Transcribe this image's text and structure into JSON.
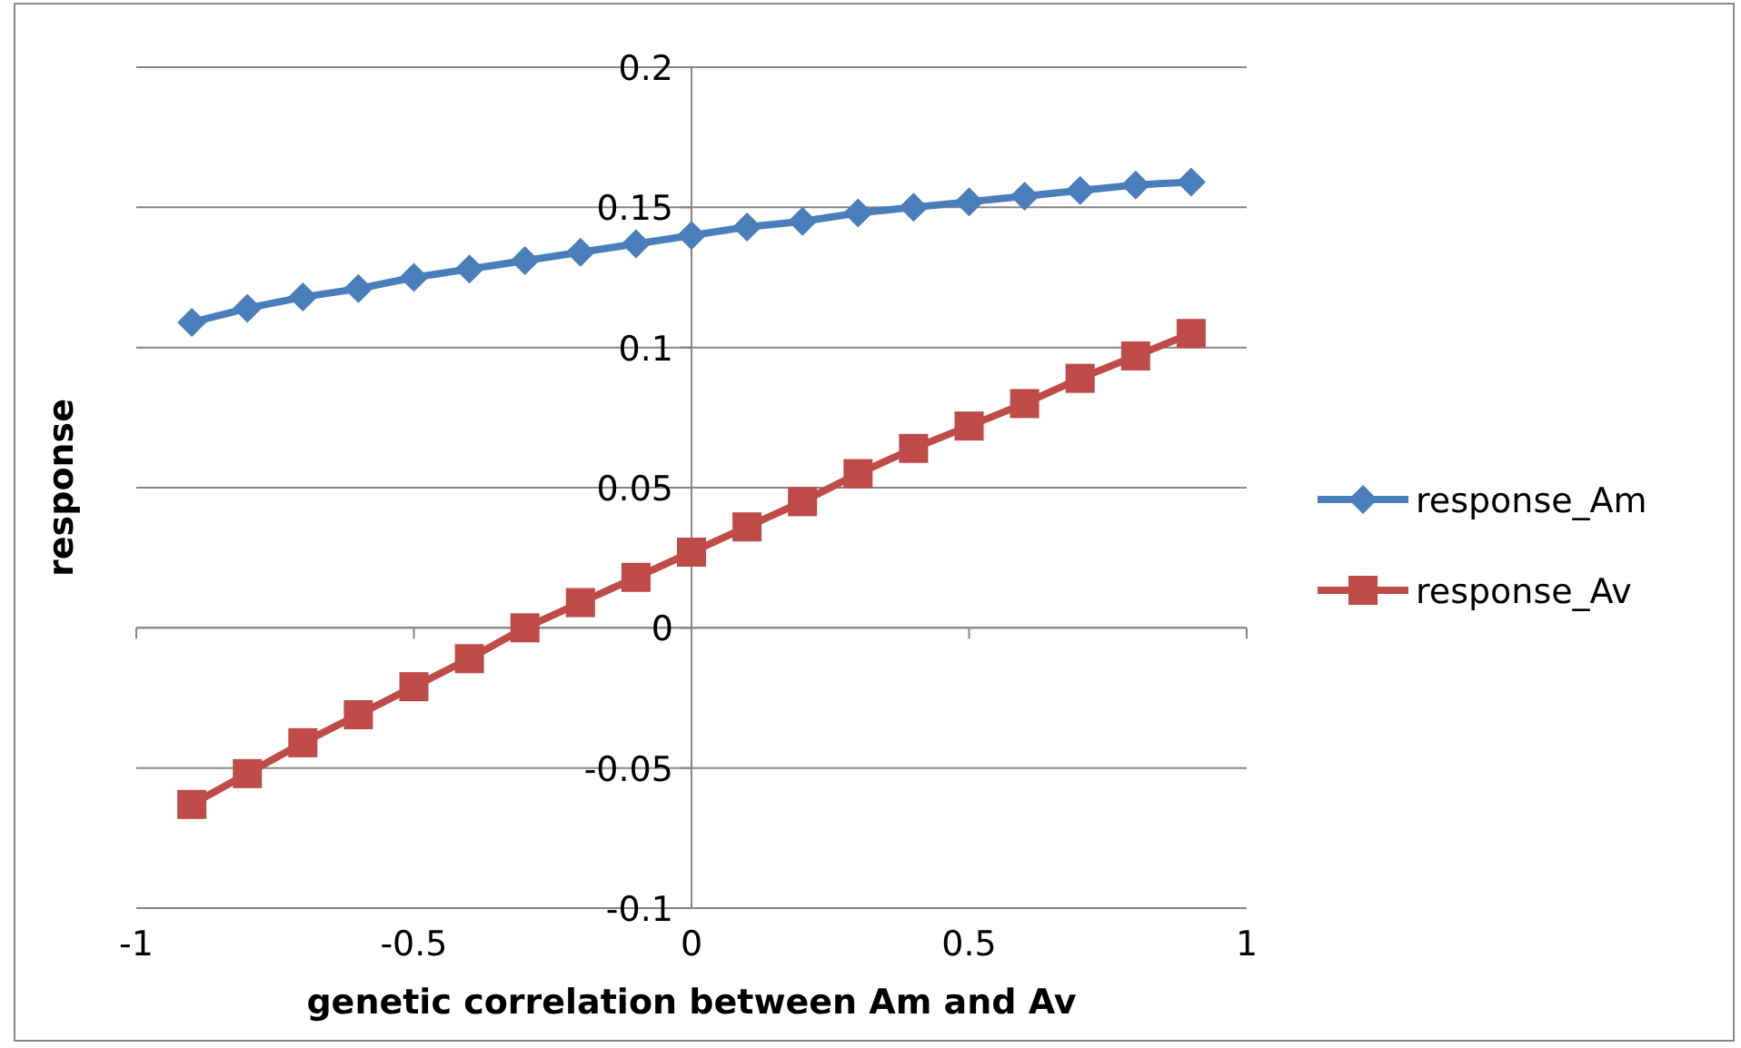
{
  "chart_data": {
    "type": "line",
    "xlabel": "genetic correlation between Am and Av",
    "ylabel": "response",
    "x": [
      -0.9,
      -0.8,
      -0.7,
      -0.6,
      -0.5,
      -0.4,
      -0.3,
      -0.2,
      -0.1,
      0,
      0.1,
      0.2,
      0.3,
      0.4,
      0.5,
      0.6,
      0.7,
      0.8,
      0.9
    ],
    "series": [
      {
        "name": "response_Am",
        "color": "#4a7ebb",
        "marker": "diamond",
        "values": [
          0.109,
          0.114,
          0.118,
          0.121,
          0.125,
          0.128,
          0.131,
          0.134,
          0.137,
          0.14,
          0.143,
          0.145,
          0.148,
          0.15,
          0.152,
          0.154,
          0.156,
          0.158,
          0.159
        ]
      },
      {
        "name": "response_Av",
        "color": "#be4b48",
        "marker": "square",
        "values": [
          -0.063,
          -0.052,
          -0.041,
          -0.031,
          -0.021,
          -0.011,
          0,
          0.009,
          0.018,
          0.027,
          0.036,
          0.045,
          0.055,
          0.064,
          0.072,
          0.08,
          0.089,
          0.097,
          0.105
        ]
      }
    ],
    "xlim": [
      -1,
      1
    ],
    "xticks": [
      -1,
      -0.5,
      0,
      0.5,
      1
    ],
    "ylim": [
      -0.1,
      0.2
    ],
    "yticks": [
      -0.1,
      -0.05,
      0,
      0.05,
      0.1,
      0.15,
      0.2
    ],
    "grid": "y",
    "legend": "right",
    "line_style": "solid"
  }
}
